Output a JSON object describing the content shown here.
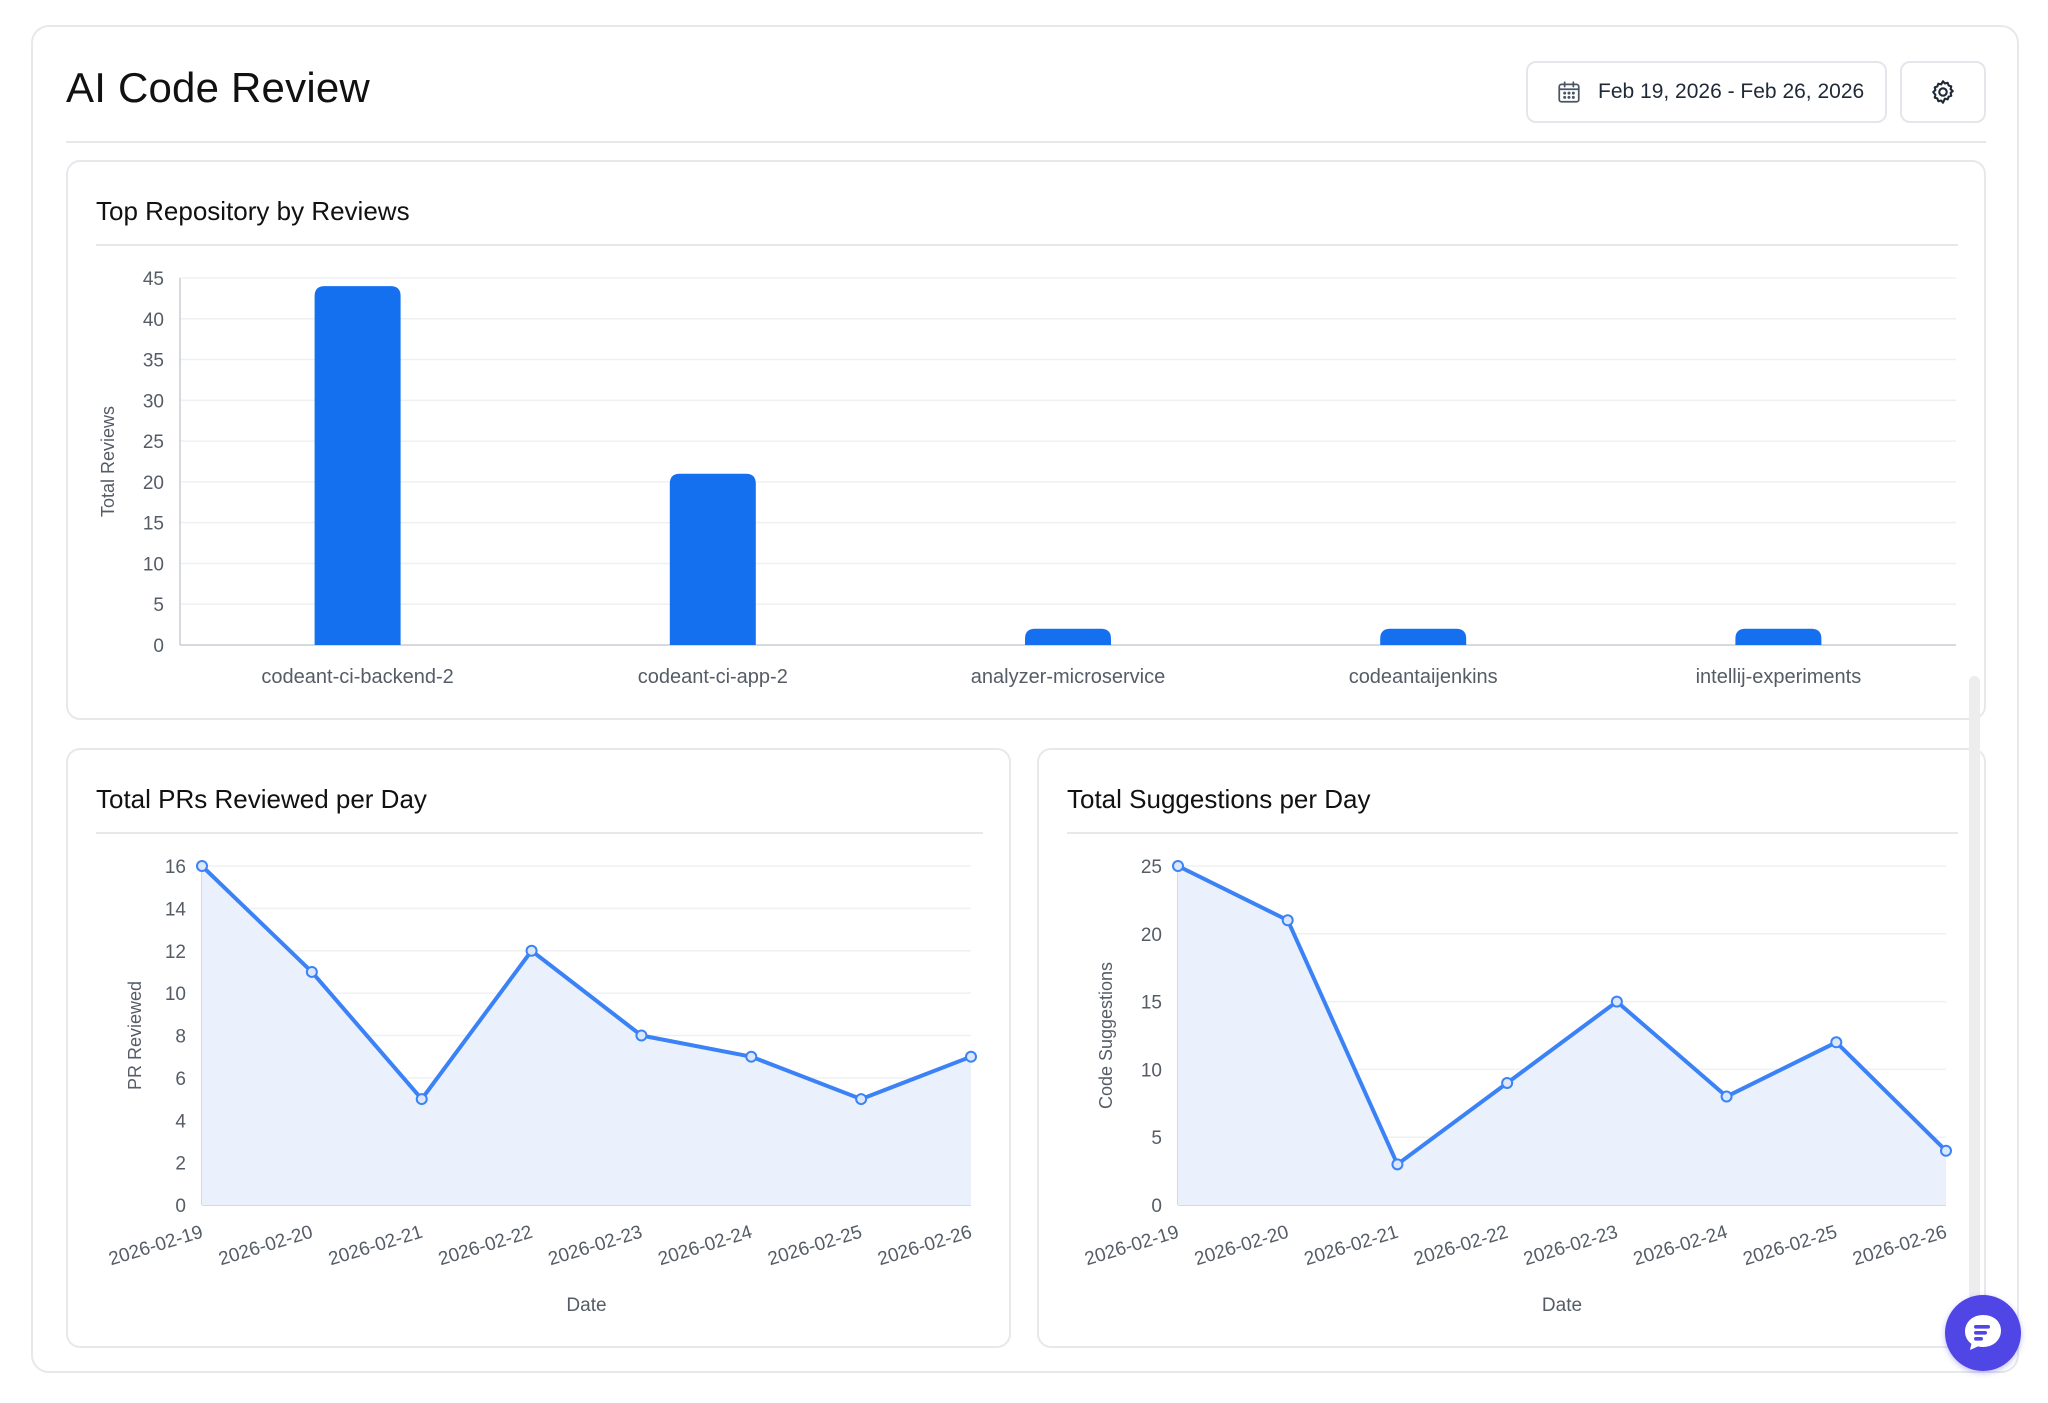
{
  "header": {
    "title": "AI Code Review",
    "date_range": "Feb 19, 2026 - Feb 26, 2026",
    "calendar_icon": "calendar-icon",
    "settings_icon": "gear-icon"
  },
  "colors": {
    "bar": "#1570EF",
    "line": "#3B82F6",
    "area_fill": "#EBF1FC",
    "fab": "#4F46E5"
  },
  "cards": {
    "top_repos": {
      "title": "Top Repository by Reviews"
    },
    "prs_per_day": {
      "title": "Total PRs Reviewed per Day"
    },
    "suggestions_per_day": {
      "title": "Total Suggestions per Day"
    }
  },
  "chat": {
    "icon": "chat-bubble-icon"
  },
  "chart_data": [
    {
      "type": "bar",
      "title": "Top Repository by Reviews",
      "categories": [
        "codeant-ci-backend-2",
        "codeant-ci-app-2",
        "analyzer-microservice",
        "codeantaijenkins",
        "intellij-experiments"
      ],
      "values": [
        44,
        21,
        2,
        2,
        2
      ],
      "xlabel": "",
      "ylabel": "Total Reviews",
      "ylim": [
        0,
        45
      ],
      "yticks": [
        0,
        5,
        10,
        15,
        20,
        25,
        30,
        35,
        40,
        45
      ],
      "grid": true,
      "legend": "none"
    },
    {
      "type": "area",
      "title": "Total PRs Reviewed per Day",
      "x": [
        "2026-02-19",
        "2026-02-20",
        "2026-02-21",
        "2026-02-22",
        "2026-02-23",
        "2026-02-24",
        "2026-02-25",
        "2026-02-26"
      ],
      "values": [
        16,
        11,
        5,
        12,
        8,
        7,
        5,
        7
      ],
      "xlabel": "Date",
      "ylabel": "PR Reviewed",
      "ylim": [
        0,
        16
      ],
      "yticks": [
        0,
        2,
        4,
        6,
        8,
        10,
        12,
        14,
        16
      ],
      "grid": true,
      "legend": "none"
    },
    {
      "type": "area",
      "title": "Total Suggestions per Day",
      "x": [
        "2026-02-19",
        "2026-02-20",
        "2026-02-21",
        "2026-02-22",
        "2026-02-23",
        "2026-02-24",
        "2026-02-25",
        "2026-02-26"
      ],
      "values": [
        25,
        21,
        3,
        9,
        15,
        8,
        12,
        4
      ],
      "xlabel": "Date",
      "ylabel": "Code Suggestions",
      "ylim": [
        0,
        25
      ],
      "yticks": [
        0,
        5,
        10,
        15,
        20,
        25
      ],
      "grid": true,
      "legend": "none"
    }
  ]
}
